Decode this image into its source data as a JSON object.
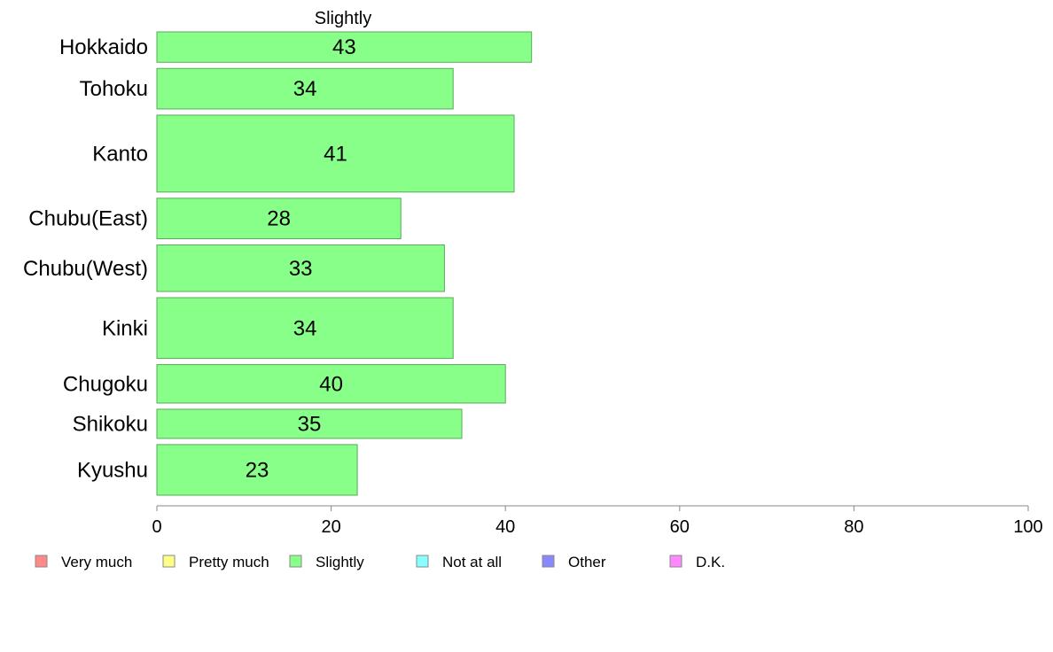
{
  "chart_data": {
    "type": "bar",
    "orientation": "horizontal",
    "title": "Slightly",
    "categories": [
      "Hokkaido",
      "Tohoku",
      "Kanto",
      "Chubu(East)",
      "Chubu(West)",
      "Kinki",
      "Chugoku",
      "Shikoku",
      "Kyushu"
    ],
    "values": [
      43,
      34,
      41,
      28,
      33,
      34,
      40,
      35,
      23
    ],
    "bar_labels": [
      "43",
      "34",
      "41",
      "28",
      "33",
      "34",
      "40",
      "35",
      "23"
    ],
    "relative_bar_thickness": [
      0.75,
      1.0,
      1.9,
      1.0,
      1.15,
      1.5,
      0.95,
      0.72,
      1.25
    ],
    "xlim": [
      0,
      100
    ],
    "xticks": [
      0,
      20,
      40,
      60,
      80,
      100
    ],
    "xtick_labels": [
      "0",
      "20",
      "40",
      "60",
      "80",
      "100"
    ],
    "xlabel": "",
    "ylabel": "",
    "grid": false,
    "bar_color": "#88ff88",
    "bar_stroke": "#5aa85a",
    "legend_position": "bottom",
    "legend": [
      {
        "name": "Very much",
        "color": "#ff8888"
      },
      {
        "name": "Pretty much",
        "color": "#ffff88"
      },
      {
        "name": "Slightly",
        "color": "#88ff88"
      },
      {
        "name": "Not at all",
        "color": "#88ffff"
      },
      {
        "name": "Other",
        "color": "#8888ff"
      },
      {
        "name": "D.K.",
        "color": "#ff88ff"
      }
    ]
  }
}
